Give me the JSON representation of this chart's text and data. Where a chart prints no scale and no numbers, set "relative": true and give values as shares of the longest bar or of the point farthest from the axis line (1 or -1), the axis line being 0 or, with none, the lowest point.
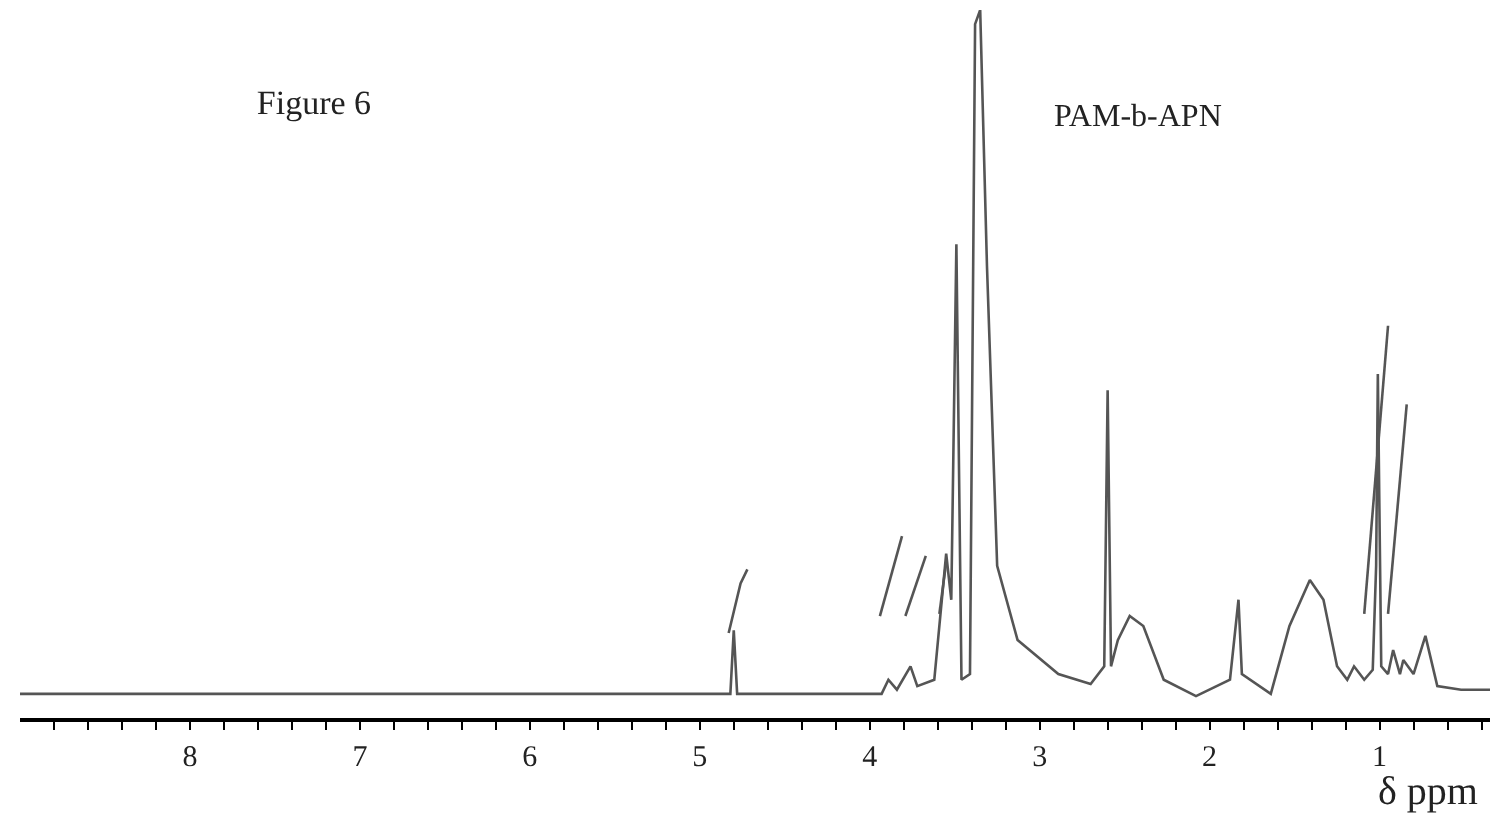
{
  "chart_data": {
    "type": "line",
    "title": "Figure 6",
    "xlabel": "δ ppm",
    "annotations": [
      "PAM-b-APN"
    ],
    "relative": true,
    "grid": false,
    "marker": "none",
    "line_style": "solid",
    "xlim": [
      9.0,
      0.35
    ],
    "xticks": [
      {
        "value": 8.8,
        "label": null
      },
      {
        "value": 8.6,
        "label": null
      },
      {
        "value": 8.4,
        "label": null
      },
      {
        "value": 8.2,
        "label": null
      },
      8,
      {
        "value": 7.8,
        "label": null
      },
      {
        "value": 7.6,
        "label": null
      },
      {
        "value": 7.4,
        "label": null
      },
      {
        "value": 7.2,
        "label": null
      },
      7,
      {
        "value": 6.8,
        "label": null
      },
      {
        "value": 6.6,
        "label": null
      },
      {
        "value": 6.4,
        "label": null
      },
      {
        "value": 6.2,
        "label": null
      },
      6,
      {
        "value": 5.8,
        "label": null
      },
      {
        "value": 5.6,
        "label": null
      },
      {
        "value": 5.4,
        "label": null
      },
      {
        "value": 5.2,
        "label": null
      },
      5,
      {
        "value": 4.8,
        "label": null
      },
      {
        "value": 4.6,
        "label": null
      },
      {
        "value": 4.4,
        "label": null
      },
      {
        "value": 4.2,
        "label": null
      },
      4,
      {
        "value": 3.8,
        "label": null
      },
      {
        "value": 3.6,
        "label": null
      },
      {
        "value": 3.4,
        "label": null
      },
      {
        "value": 3.2,
        "label": null
      },
      3,
      {
        "value": 2.8,
        "label": null
      },
      {
        "value": 2.6,
        "label": null
      },
      {
        "value": 2.4,
        "label": null
      },
      {
        "value": 2.2,
        "label": null
      },
      2,
      {
        "value": 1.8,
        "label": null
      },
      {
        "value": 1.6,
        "label": null
      },
      {
        "value": 1.4,
        "label": null
      },
      {
        "value": 1.2,
        "label": null
      },
      1,
      {
        "value": 0.8,
        "label": null
      },
      {
        "value": 0.6,
        "label": null
      },
      {
        "value": 0.4,
        "label": null
      }
    ],
    "series": [
      {
        "color": "#555555",
        "x": [
          9.0,
          4.85,
          4.82,
          4.8,
          4.78,
          3.93,
          3.89,
          3.84,
          3.76,
          3.72,
          3.62,
          3.55,
          3.52,
          3.49,
          3.46,
          3.41,
          3.38,
          3.35,
          3.31,
          3.25,
          3.13,
          2.89,
          2.7,
          2.62,
          2.6,
          2.58,
          2.54,
          2.47,
          2.39,
          2.27,
          2.08,
          1.88,
          1.83,
          1.81,
          1.64,
          1.53,
          1.41,
          1.33,
          1.25,
          1.19,
          1.15,
          1.09,
          1.04,
          1.02,
          1.01,
          0.99,
          0.95,
          0.92,
          0.88,
          0.86,
          0.8,
          0.73,
          0.66,
          0.52,
          0.35
        ],
        "values": [
          0.034,
          0.034,
          0.034,
          0.124,
          0.034,
          0.034,
          0.054,
          0.04,
          0.073,
          0.045,
          0.054,
          0.232,
          0.167,
          0.669,
          0.054,
          0.062,
          0.98,
          1.0,
          0.638,
          0.215,
          0.11,
          0.062,
          0.048,
          0.073,
          0.463,
          0.073,
          0.11,
          0.144,
          0.13,
          0.054,
          0.031,
          0.054,
          0.167,
          0.062,
          0.034,
          0.13,
          0.195,
          0.167,
          0.073,
          0.054,
          0.073,
          0.054,
          0.068,
          0.215,
          0.486,
          0.073,
          0.062,
          0.096,
          0.062,
          0.082,
          0.062,
          0.116,
          0.045,
          0.04,
          0.04
        ]
      },
      {
        "color": "#555555",
        "x": [
          4.83,
          4.8,
          4.76,
          4.72
        ],
        "values": [
          0.12,
          0.15,
          0.19,
          0.21
        ]
      },
      {
        "color": "#555555",
        "x": [
          3.94,
          3.81
        ],
        "values": [
          0.144,
          0.257
        ]
      },
      {
        "color": "#555555",
        "x": [
          3.79,
          3.67
        ],
        "values": [
          0.144,
          0.229
        ]
      },
      {
        "color": "#555555",
        "x": [
          3.59,
          3.55
        ],
        "values": [
          0.147,
          0.22
        ]
      },
      {
        "color": "#555555",
        "x": [
          1.09,
          0.95
        ],
        "values": [
          0.147,
          0.554
        ]
      },
      {
        "color": "#555555",
        "x": [
          0.95,
          0.84
        ],
        "values": [
          0.147,
          0.443
        ]
      }
    ]
  }
}
